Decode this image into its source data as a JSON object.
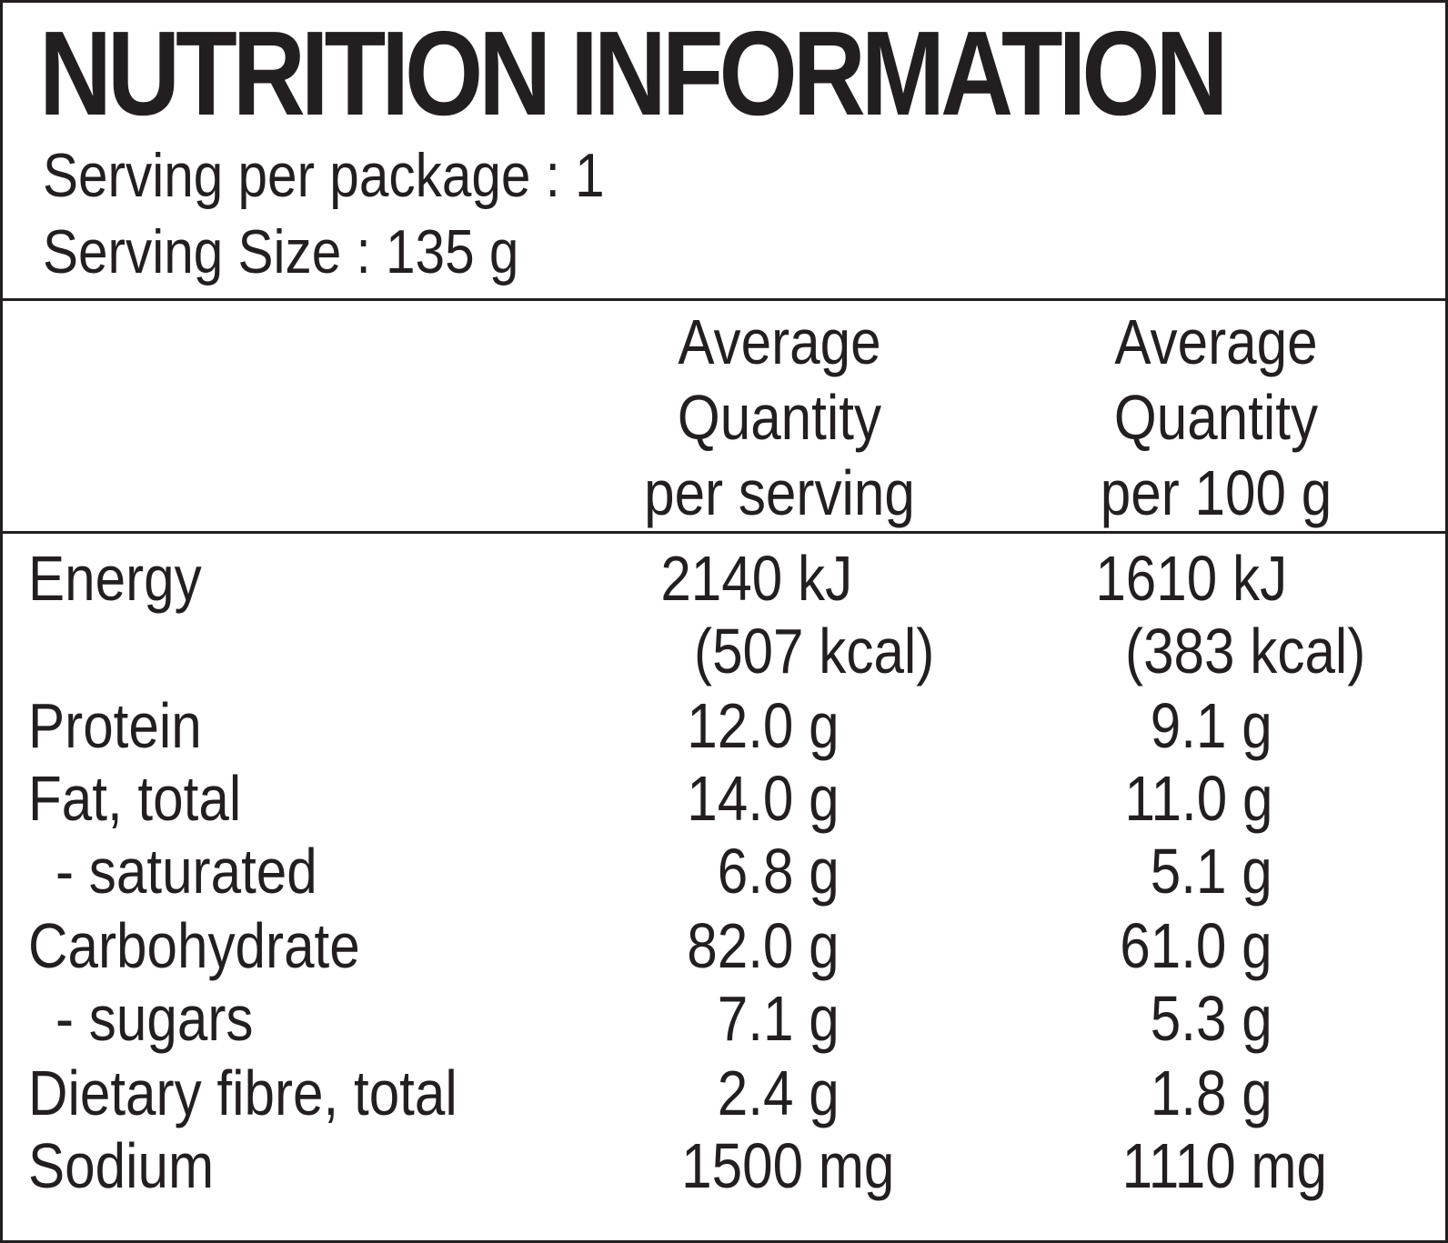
{
  "title": "NUTRITION INFORMATION",
  "serving_per_package": "Serving per package : 1",
  "serving_size": "Serving Size : 135 g",
  "columns": {
    "per_serving": [
      "Average",
      "Quantity",
      "per serving"
    ],
    "per_100g": [
      "Average",
      "Quantity",
      "per 100 g"
    ]
  },
  "rows": [
    {
      "label": "Energy",
      "per_serving": "2140 kJ",
      "per_100g": "1610 kJ"
    },
    {
      "label": "",
      "per_serving": "(507 kcal)",
      "per_100g": "(383 kcal)"
    },
    {
      "label": "Protein",
      "per_serving": "12.0 g",
      "per_100g": "9.1 g"
    },
    {
      "label": "Fat, total",
      "per_serving": "14.0 g",
      "per_100g": "11.0 g"
    },
    {
      "label": "- saturated",
      "per_serving": "6.8 g",
      "per_100g": "5.1 g"
    },
    {
      "label": "Carbohydrate",
      "per_serving": "82.0 g",
      "per_100g": "61.0 g"
    },
    {
      "label": "- sugars",
      "per_serving": "7.1 g",
      "per_100g": "5.3 g"
    },
    {
      "label": "Dietary fibre, total",
      "per_serving": "2.4 g",
      "per_100g": "1.8 g"
    },
    {
      "label": "Sodium",
      "per_serving": "1500 mg",
      "per_100g": "1110 mg"
    }
  ],
  "colors": {
    "ink": "#231f20",
    "background": "#ffffff"
  }
}
